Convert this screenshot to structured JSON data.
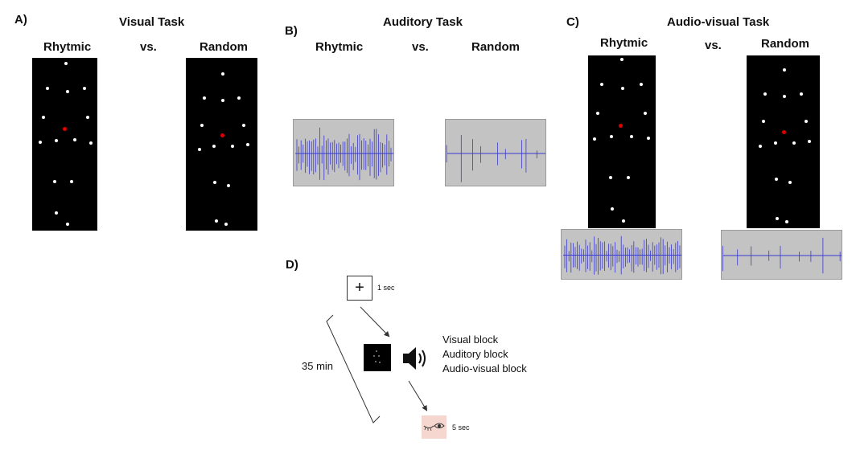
{
  "panelA": {
    "letter": "A)",
    "title": "Visual Task",
    "left_label": "Rhytmic",
    "vs": "vs.",
    "right_label": "Random"
  },
  "panelB": {
    "letter": "B)",
    "title": "Auditory Task",
    "left_label": "Rhytmic",
    "vs": "vs.",
    "right_label": "Random"
  },
  "panelC": {
    "letter": "C)",
    "title": "Audio-visual Task",
    "left_label": "Rhytmic",
    "vs": "vs.",
    "right_label": "Random"
  },
  "panelD": {
    "letter": "D)",
    "fixation_symbol": "+",
    "fixation_duration": "1 sec",
    "session_duration": "35 min",
    "blocks": [
      "Visual block",
      "Auditory block",
      "Audio-visual block"
    ],
    "rest_duration": "5 sec"
  },
  "colors": {
    "stimulus_bg": "#000000",
    "dot": "#ffffff",
    "fixation_dot": "#e00000",
    "waveform": "#3a3ad0",
    "waveform_bg": "#c3c3c3",
    "rest_bg": "#f6d7cf"
  },
  "icons": [
    "speaker-icon",
    "closed-eye-icon",
    "open-eye-icon"
  ]
}
